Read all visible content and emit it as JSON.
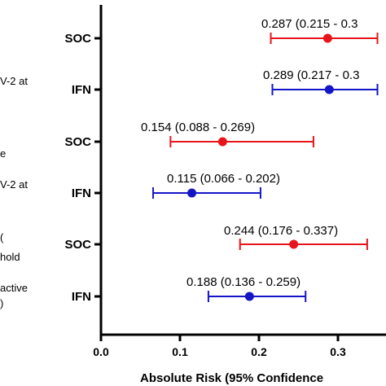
{
  "chart_data": {
    "type": "forest",
    "xlabel": "Absolute Risk  (95% Confidence",
    "xlim": [
      0.0,
      0.35
    ],
    "xticks": [
      "0.0",
      "0.1",
      "0.2",
      "0.3"
    ],
    "xtick_values": [
      0.0,
      0.1,
      0.2,
      0.3
    ],
    "grid": false,
    "group_label_fragments": [
      "V-2 at",
      "e",
      "V-2 at",
      "(",
      "hold",
      "active",
      ")"
    ],
    "rows": [
      {
        "label": "SOC",
        "color": "#e8141b",
        "estimate": 0.287,
        "lower": 0.215,
        "upper": 0.35,
        "annotation": "0.287 (0.215 - 0.3"
      },
      {
        "label": "IFN",
        "color": "#1515c8",
        "estimate": 0.289,
        "lower": 0.217,
        "upper": 0.35,
        "annotation": "0.289 (0.217 - 0.3"
      },
      {
        "label": "SOC",
        "color": "#e8141b",
        "estimate": 0.154,
        "lower": 0.088,
        "upper": 0.269,
        "annotation": "0.154 (0.088 - 0.269)"
      },
      {
        "label": "IFN",
        "color": "#1515c8",
        "estimate": 0.115,
        "lower": 0.066,
        "upper": 0.202,
        "annotation": "0.115 (0.066 - 0.202)"
      },
      {
        "label": "SOC",
        "color": "#e8141b",
        "estimate": 0.244,
        "lower": 0.176,
        "upper": 0.337,
        "annotation": "0.244 (0.176 - 0.337)"
      },
      {
        "label": "IFN",
        "color": "#1515c8",
        "estimate": 0.188,
        "lower": 0.136,
        "upper": 0.259,
        "annotation": "0.188 (0.136 - 0.259)"
      }
    ]
  }
}
